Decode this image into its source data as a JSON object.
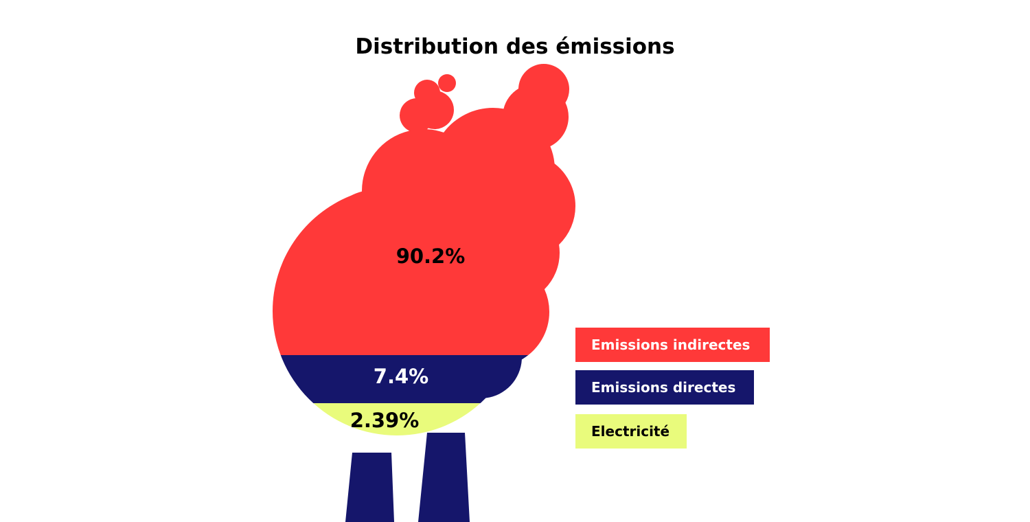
{
  "chart_data": {
    "type": "pie",
    "title": "Distribution des émissions",
    "unit": "%",
    "legend_position": "right",
    "series": [
      {
        "name": "Emissions indirectes",
        "value": 90.2,
        "label": "90.2%",
        "color": "#ff3939",
        "legend_text_color": "#ffffff",
        "value_text_color": "#000000"
      },
      {
        "name": "Emissions directes",
        "value": 7.4,
        "label": "7.4%",
        "color": "#15166b",
        "legend_text_color": "#ffffff",
        "value_text_color": "#ffffff"
      },
      {
        "name": "Electricité",
        "value": 2.39,
        "label": "2.39%",
        "color": "#e9fb7c",
        "legend_text_color": "#000000",
        "value_text_color": "#000000"
      }
    ],
    "chimney_color": "#15166b"
  }
}
